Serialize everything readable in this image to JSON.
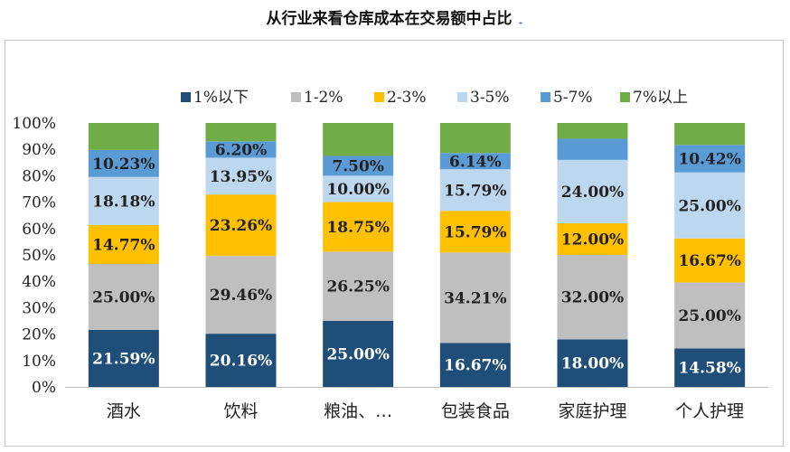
{
  "title": "从行业来看仓库成本在交易额中占比",
  "title_mark": "۔",
  "colors": {
    "1%以下": "#1f4e79",
    "1-2%": "#bfbfbf",
    "2-3%": "#ffc000",
    "3-5%": "#bdd7ee",
    "5-7%": "#5b9bd5",
    "7%以上": "#70ad47"
  },
  "chart_data": {
    "type": "bar",
    "stacked": true,
    "percent": true,
    "title": "",
    "categories": [
      "酒水",
      "饮料",
      "粮油、…",
      "包装食品",
      "家庭护理",
      "个人护理"
    ],
    "ylim": [
      0,
      100
    ],
    "yticks": [
      "0%",
      "10%",
      "20%",
      "30%",
      "40%",
      "50%",
      "60%",
      "70%",
      "80%",
      "90%",
      "100%"
    ],
    "legend_position": "top",
    "series": [
      {
        "name": "1%以下",
        "values": [
          21.59,
          20.16,
          25.0,
          16.67,
          18.0,
          14.58
        ],
        "labels": [
          "21.59%",
          "20.16%",
          "25.00%",
          "16.67%",
          "18.00%",
          "14.58%"
        ]
      },
      {
        "name": "1-2%",
        "values": [
          25.0,
          29.46,
          26.25,
          34.21,
          32.0,
          25.0
        ],
        "labels": [
          "25.00%",
          "29.46%",
          "26.25%",
          "34.21%",
          "32.00%",
          "25.00%"
        ]
      },
      {
        "name": "2-3%",
        "values": [
          14.77,
          23.26,
          18.75,
          15.79,
          12.0,
          16.67
        ],
        "labels": [
          "14.77%",
          "23.26%",
          "18.75%",
          "15.79%",
          "12.00%",
          "16.67%"
        ]
      },
      {
        "name": "3-5%",
        "values": [
          18.18,
          13.95,
          10.0,
          15.79,
          24.0,
          25.0
        ],
        "labels": [
          "18.18%",
          "13.95%",
          "10.00%",
          "15.79%",
          "24.00%",
          "25.00%"
        ]
      },
      {
        "name": "5-7%",
        "values": [
          10.23,
          6.2,
          7.5,
          6.14,
          8.0,
          10.42
        ],
        "labels": [
          "10.23%",
          "6.20%",
          "7.50%",
          "6.14%",
          "",
          "10.42%"
        ]
      },
      {
        "name": "7%以上",
        "values": [
          10.23,
          6.97,
          12.5,
          11.4,
          6.0,
          8.33
        ],
        "labels": [
          "",
          "",
          "",
          "",
          "",
          ""
        ]
      }
    ]
  }
}
